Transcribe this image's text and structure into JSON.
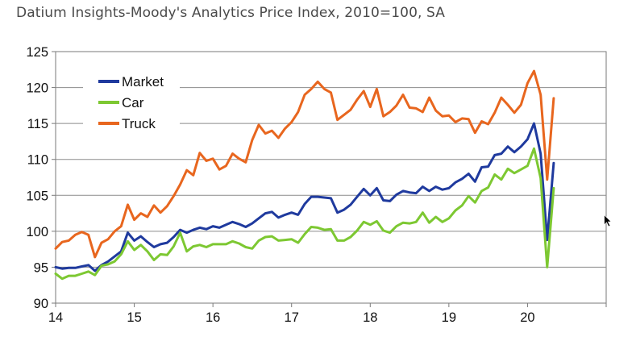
{
  "title": "Datium Insights-Moody's Analytics Price Index, 2010=100, SA",
  "chart_data": {
    "type": "line",
    "title": "Datium Insights-Moody's Analytics Price Index, 2010=100, SA",
    "xlabel": "",
    "ylabel": "",
    "xlim": [
      14,
      21
    ],
    "ylim": [
      90,
      125
    ],
    "x_ticks": [
      "14",
      "15",
      "16",
      "17",
      "18",
      "19",
      "20"
    ],
    "y_ticks": [
      "90",
      "95",
      "100",
      "105",
      "110",
      "115",
      "120",
      "125"
    ],
    "grid": "horizontal",
    "legend_position": "top-left",
    "series": [
      {
        "name": "Market",
        "color": "#1f3a9e",
        "x": [
          14.0,
          14.083,
          14.167,
          14.25,
          14.333,
          14.417,
          14.5,
          14.583,
          14.667,
          14.75,
          14.833,
          14.917,
          15.0,
          15.083,
          15.167,
          15.25,
          15.333,
          15.417,
          15.5,
          15.583,
          15.667,
          15.75,
          15.833,
          15.917,
          16.0,
          16.083,
          16.167,
          16.25,
          16.333,
          16.417,
          16.5,
          16.583,
          16.667,
          16.75,
          16.833,
          16.917,
          17.0,
          17.083,
          17.167,
          17.25,
          17.333,
          17.417,
          17.5,
          17.583,
          17.667,
          17.75,
          17.833,
          17.917,
          18.0,
          18.083,
          18.167,
          18.25,
          18.333,
          18.417,
          18.5,
          18.583,
          18.667,
          18.75,
          18.833,
          18.917,
          19.0,
          19.083,
          19.167,
          19.25,
          19.333,
          19.417,
          19.5,
          19.583,
          19.667,
          19.75,
          19.833,
          19.917,
          20.0,
          20.083,
          20.167,
          20.25,
          20.333
        ],
        "values": [
          95.0,
          94.8,
          94.9,
          94.9,
          95.1,
          95.3,
          94.5,
          95.3,
          95.8,
          96.5,
          97.2,
          99.8,
          98.7,
          99.3,
          98.5,
          97.8,
          98.2,
          98.4,
          99.2,
          100.2,
          99.8,
          100.2,
          100.5,
          100.3,
          100.7,
          100.5,
          100.9,
          101.3,
          101.0,
          100.6,
          101.1,
          101.8,
          102.5,
          102.7,
          101.9,
          102.3,
          102.6,
          102.3,
          103.8,
          104.8,
          104.8,
          104.7,
          104.6,
          102.6,
          103.0,
          103.7,
          104.8,
          105.9,
          105.0,
          106.0,
          104.3,
          104.2,
          105.1,
          105.6,
          105.4,
          105.3,
          106.2,
          105.6,
          106.2,
          105.8,
          106.0,
          106.8,
          107.3,
          108.0,
          106.9,
          108.9,
          109.0,
          110.6,
          110.8,
          111.8,
          111.0,
          111.8,
          112.8,
          115.0,
          110.8,
          98.8,
          109.5
        ]
      },
      {
        "name": "Car",
        "color": "#7dc832",
        "x": [
          14.0,
          14.083,
          14.167,
          14.25,
          14.333,
          14.417,
          14.5,
          14.583,
          14.667,
          14.75,
          14.833,
          14.917,
          15.0,
          15.083,
          15.167,
          15.25,
          15.333,
          15.417,
          15.5,
          15.583,
          15.667,
          15.75,
          15.833,
          15.917,
          16.0,
          16.083,
          16.167,
          16.25,
          16.333,
          16.417,
          16.5,
          16.583,
          16.667,
          16.75,
          16.833,
          16.917,
          17.0,
          17.083,
          17.167,
          17.25,
          17.333,
          17.417,
          17.5,
          17.583,
          17.667,
          17.75,
          17.833,
          17.917,
          18.0,
          18.083,
          18.167,
          18.25,
          18.333,
          18.417,
          18.5,
          18.583,
          18.667,
          18.75,
          18.833,
          18.917,
          19.0,
          19.083,
          19.167,
          19.25,
          19.333,
          19.417,
          19.5,
          19.583,
          19.667,
          19.75,
          19.833,
          19.917,
          20.0,
          20.083,
          20.167,
          20.25,
          20.333
        ],
        "values": [
          94.1,
          93.4,
          93.8,
          93.8,
          94.1,
          94.4,
          93.9,
          95.2,
          95.4,
          95.8,
          96.8,
          98.6,
          97.4,
          98.1,
          97.2,
          96.0,
          96.8,
          96.7,
          97.9,
          99.8,
          97.2,
          97.9,
          98.1,
          97.8,
          98.2,
          98.2,
          98.2,
          98.6,
          98.3,
          97.8,
          97.6,
          98.7,
          99.2,
          99.3,
          98.7,
          98.8,
          98.9,
          98.4,
          99.6,
          100.6,
          100.5,
          100.2,
          100.3,
          98.7,
          98.7,
          99.2,
          100.1,
          101.3,
          100.9,
          101.4,
          100.1,
          99.8,
          100.7,
          101.2,
          101.1,
          101.3,
          102.6,
          101.2,
          102.0,
          101.3,
          101.8,
          102.9,
          103.6,
          104.9,
          104.0,
          105.6,
          106.1,
          107.9,
          107.2,
          108.7,
          108.1,
          108.6,
          109.1,
          111.5,
          107.4,
          95.0,
          106.0
        ]
      },
      {
        "name": "Truck",
        "color": "#e8661e",
        "x": [
          14.0,
          14.083,
          14.167,
          14.25,
          14.333,
          14.417,
          14.5,
          14.583,
          14.667,
          14.75,
          14.833,
          14.917,
          15.0,
          15.083,
          15.167,
          15.25,
          15.333,
          15.417,
          15.5,
          15.583,
          15.667,
          15.75,
          15.833,
          15.917,
          16.0,
          16.083,
          16.167,
          16.25,
          16.333,
          16.417,
          16.5,
          16.583,
          16.667,
          16.75,
          16.833,
          16.917,
          17.0,
          17.083,
          17.167,
          17.25,
          17.333,
          17.417,
          17.5,
          17.583,
          17.667,
          17.75,
          17.833,
          17.917,
          18.0,
          18.083,
          18.167,
          18.25,
          18.333,
          18.417,
          18.5,
          18.583,
          18.667,
          18.75,
          18.833,
          18.917,
          19.0,
          19.083,
          19.167,
          19.25,
          19.333,
          19.417,
          19.5,
          19.583,
          19.667,
          19.75,
          19.833,
          19.917,
          20.0,
          20.083,
          20.167,
          20.25,
          20.333
        ],
        "values": [
          97.6,
          98.5,
          98.7,
          99.5,
          99.9,
          99.5,
          96.4,
          98.4,
          98.9,
          100.0,
          100.7,
          103.7,
          101.6,
          102.5,
          102.0,
          103.6,
          102.6,
          103.5,
          104.9,
          106.5,
          108.5,
          107.8,
          110.9,
          109.8,
          110.1,
          108.6,
          109.1,
          110.8,
          110.1,
          109.6,
          112.7,
          114.8,
          113.6,
          114.0,
          113.0,
          114.3,
          115.2,
          116.6,
          119.0,
          119.8,
          120.8,
          119.8,
          119.3,
          115.5,
          116.2,
          116.9,
          118.3,
          119.5,
          117.3,
          119.8,
          116.0,
          116.6,
          117.5,
          119.0,
          117.2,
          117.1,
          116.6,
          118.6,
          116.8,
          116.0,
          116.1,
          115.2,
          115.7,
          115.6,
          113.7,
          115.3,
          114.9,
          116.5,
          118.6,
          117.6,
          116.5,
          117.6,
          120.6,
          122.3,
          119.0,
          107.2,
          118.5
        ]
      }
    ]
  },
  "cursor_icon": "mouse-pointer-icon"
}
